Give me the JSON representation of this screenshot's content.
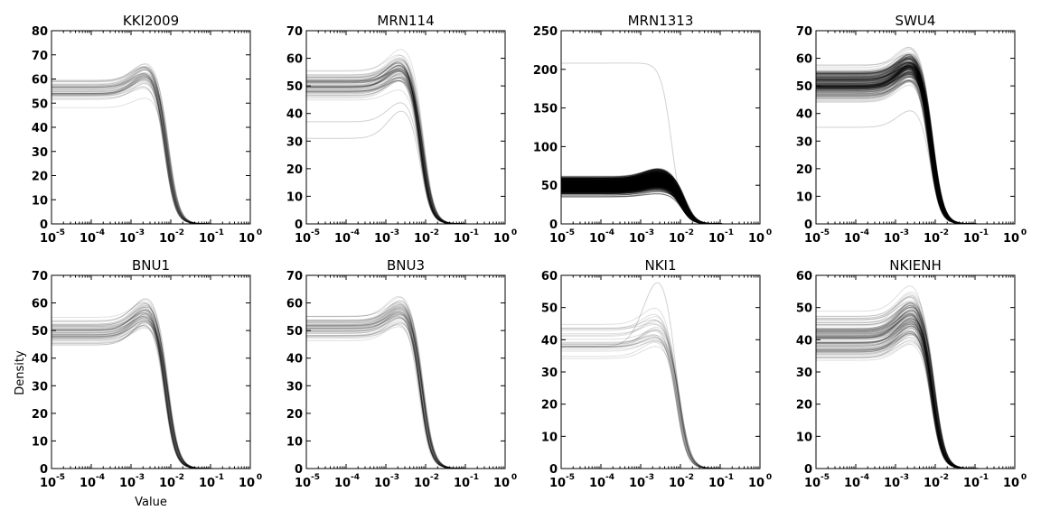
{
  "chart_data": [
    {
      "type": "line",
      "title": "KKI2009",
      "xscale": "log",
      "xlim": [
        1e-05,
        1
      ],
      "ylim": [
        0,
        80
      ],
      "yticks": [
        0,
        10,
        20,
        30,
        40,
        50,
        60,
        70,
        80
      ],
      "xticks": [
        "10^-5",
        "10^-4",
        "10^-3",
        "10^-2",
        "10^-1",
        "10^0"
      ],
      "n_curves": 45,
      "plateau_range": [
        46,
        64
      ],
      "peak_range": [
        52,
        73
      ],
      "peak_x": 0.003,
      "drop_x": 0.008,
      "opacity": 0.12,
      "outliers": []
    },
    {
      "type": "line",
      "title": "MRN114",
      "xscale": "log",
      "xlim": [
        1e-05,
        1
      ],
      "ylim": [
        0,
        70
      ],
      "yticks": [
        0,
        10,
        20,
        30,
        40,
        50,
        60,
        70
      ],
      "xticks": [
        "10^-5",
        "10^-4",
        "10^-3",
        "10^-2",
        "10^-1",
        "10^0"
      ],
      "n_curves": 70,
      "plateau_range": [
        42,
        58
      ],
      "peak_range": [
        48,
        66
      ],
      "peak_x": 0.003,
      "drop_x": 0.008,
      "opacity": 0.12,
      "outliers": [
        {
          "plateau": 31,
          "peak": 42
        },
        {
          "plateau": 37,
          "peak": 45
        }
      ]
    },
    {
      "type": "line",
      "title": "MRN1313",
      "xscale": "log",
      "xlim": [
        1e-05,
        1
      ],
      "ylim": [
        0,
        250
      ],
      "yticks": [
        0,
        50,
        100,
        150,
        200,
        250
      ],
      "xticks": [
        "10^-5",
        "10^-4",
        "10^-3",
        "10^-2",
        "10^-1",
        "10^0"
      ],
      "n_curves": 350,
      "plateau_range": [
        33,
        64
      ],
      "peak_range": [
        38,
        76
      ],
      "peak_x": 0.003,
      "drop_x": 0.012,
      "opacity": 0.35,
      "outliers": [
        {
          "plateau": 208,
          "peak": 209,
          "drop_x": 0.006
        }
      ]
    },
    {
      "type": "line",
      "title": "SWU4",
      "xscale": "log",
      "xlim": [
        1e-05,
        1
      ],
      "ylim": [
        0,
        70
      ],
      "yticks": [
        0,
        10,
        20,
        30,
        40,
        50,
        60,
        70
      ],
      "xticks": [
        "10^-5",
        "10^-4",
        "10^-3",
        "10^-2",
        "10^-1",
        "10^0"
      ],
      "n_curves": 200,
      "plateau_range": [
        42,
        59
      ],
      "peak_range": [
        50,
        66
      ],
      "peak_x": 0.003,
      "drop_x": 0.008,
      "opacity": 0.15,
      "outliers": [
        {
          "plateau": 35,
          "peak": 42
        }
      ]
    },
    {
      "type": "line",
      "title": "BNU1",
      "xscale": "log",
      "xlim": [
        1e-05,
        1
      ],
      "ylim": [
        0,
        70
      ],
      "yticks": [
        0,
        10,
        20,
        30,
        40,
        50,
        60,
        70
      ],
      "xticks": [
        "10^-5",
        "10^-4",
        "10^-3",
        "10^-2",
        "10^-1",
        "10^0"
      ],
      "n_curves": 55,
      "plateau_range": [
        42,
        56
      ],
      "peak_range": [
        50,
        64
      ],
      "peak_x": 0.003,
      "drop_x": 0.008,
      "opacity": 0.12,
      "outliers": []
    },
    {
      "type": "line",
      "title": "BNU3",
      "xscale": "log",
      "xlim": [
        1e-05,
        1
      ],
      "ylim": [
        0,
        70
      ],
      "yticks": [
        0,
        10,
        20,
        30,
        40,
        50,
        60,
        70
      ],
      "xticks": [
        "10^-5",
        "10^-4",
        "10^-3",
        "10^-2",
        "10^-1",
        "10^0"
      ],
      "n_curves": 48,
      "plateau_range": [
        44,
        59
      ],
      "peak_range": [
        50,
        67
      ],
      "peak_x": 0.003,
      "drop_x": 0.008,
      "opacity": 0.12,
      "outliers": []
    },
    {
      "type": "line",
      "title": "NKI1",
      "xscale": "log",
      "xlim": [
        1e-05,
        1
      ],
      "ylim": [
        0,
        60
      ],
      "yticks": [
        0,
        10,
        20,
        30,
        40,
        50,
        60
      ],
      "xticks": [
        "10^-5",
        "10^-4",
        "10^-3",
        "10^-2",
        "10^-1",
        "10^0"
      ],
      "n_curves": 24,
      "plateau_range": [
        33,
        46
      ],
      "peak_range": [
        38,
        50
      ],
      "peak_x": 0.003,
      "drop_x": 0.009,
      "opacity": 0.13,
      "outliers": [
        {
          "plateau": 38,
          "peak": 59
        }
      ]
    },
    {
      "type": "line",
      "title": "NKIENH",
      "xscale": "log",
      "xlim": [
        1e-05,
        1
      ],
      "ylim": [
        0,
        60
      ],
      "yticks": [
        0,
        10,
        20,
        30,
        40,
        50,
        60
      ],
      "xticks": [
        "10^-5",
        "10^-4",
        "10^-3",
        "10^-2",
        "10^-1",
        "10^0"
      ],
      "n_curves": 110,
      "plateau_range": [
        31,
        50
      ],
      "peak_range": [
        38,
        58
      ],
      "peak_x": 0.003,
      "drop_x": 0.009,
      "opacity": 0.13,
      "outliers": []
    }
  ],
  "axis_labels": {
    "ylabel": "Density",
    "xlabel": "Value"
  },
  "colors": {
    "line": "#000000",
    "background": "#ffffff"
  }
}
